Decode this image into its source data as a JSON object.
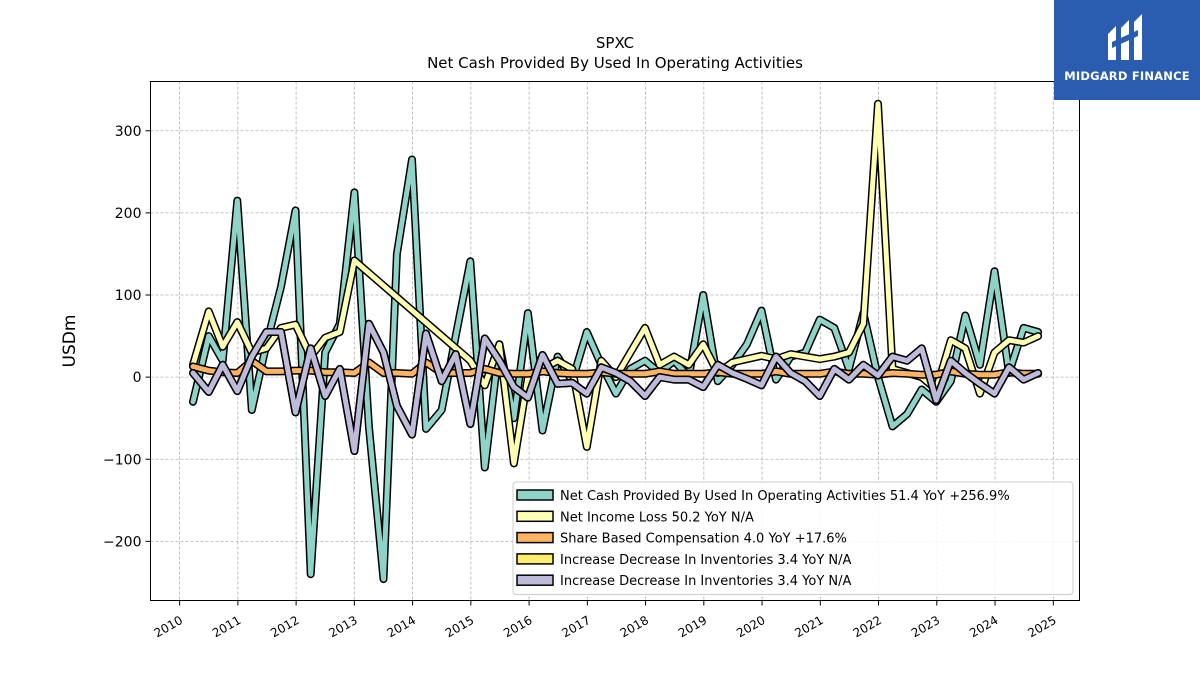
{
  "chart_data": {
    "type": "line",
    "title": "SPXC",
    "subtitle": "Net Cash Provided By Used In Operating Activities",
    "xlabel": "",
    "ylabel": "USDm",
    "xlim": [
      2009.5,
      2025.45
    ],
    "ylim": [
      -272,
      360
    ],
    "x_ticks": [
      "2010",
      "2011",
      "2012",
      "2013",
      "2014",
      "2015",
      "2016",
      "2017",
      "2018",
      "2019",
      "2020",
      "2021",
      "2022",
      "2023",
      "2024",
      "2025"
    ],
    "y_ticks": [
      {
        "value": 300,
        "label": "300"
      },
      {
        "value": 200,
        "label": "200"
      },
      {
        "value": 100,
        "label": "100"
      },
      {
        "value": 0,
        "label": "0"
      },
      {
        "value": -100,
        "label": "−100"
      },
      {
        "value": -200,
        "label": "−200"
      }
    ],
    "grid": true,
    "legend_position": "lower-right",
    "series": [
      {
        "name": "Net Cash Provided By Used In Operating Activities",
        "legend": "Net Cash Provided By Used In Operating Activities  51.4 YoY +256.9%",
        "color": "#8dd3c7",
        "points": [
          [
            2010.23,
            -30
          ],
          [
            2010.5,
            50
          ],
          [
            2010.74,
            20
          ],
          [
            2010.99,
            215
          ],
          [
            2011.24,
            -40
          ],
          [
            2011.49,
            40
          ],
          [
            2011.74,
            110
          ],
          [
            2011.99,
            203
          ],
          [
            2012.25,
            -240
          ],
          [
            2012.5,
            30
          ],
          [
            2012.75,
            65
          ],
          [
            2013.0,
            225
          ],
          [
            2013.25,
            -60
          ],
          [
            2013.5,
            -246
          ],
          [
            2013.73,
            150
          ],
          [
            2013.99,
            265
          ],
          [
            2014.23,
            -63
          ],
          [
            2014.5,
            -40
          ],
          [
            2014.74,
            50
          ],
          [
            2014.99,
            141
          ],
          [
            2015.24,
            -110
          ],
          [
            2015.49,
            40
          ],
          [
            2015.74,
            -50
          ],
          [
            2015.98,
            78
          ],
          [
            2016.23,
            -65
          ],
          [
            2016.49,
            25
          ],
          [
            2016.74,
            -5
          ],
          [
            2016.99,
            55
          ],
          [
            2017.24,
            15
          ],
          [
            2017.49,
            -20
          ],
          [
            2017.74,
            10
          ],
          [
            2017.99,
            20
          ],
          [
            2018.24,
            5
          ],
          [
            2018.49,
            20
          ],
          [
            2018.74,
            0
          ],
          [
            2018.99,
            100
          ],
          [
            2019.24,
            -5
          ],
          [
            2019.49,
            15
          ],
          [
            2019.74,
            40
          ],
          [
            2019.99,
            81
          ],
          [
            2020.24,
            -3
          ],
          [
            2020.49,
            25
          ],
          [
            2020.74,
            30
          ],
          [
            2020.99,
            70
          ],
          [
            2021.24,
            60
          ],
          [
            2021.49,
            10
          ],
          [
            2021.74,
            78
          ],
          [
            2021.99,
            0
          ],
          [
            2022.24,
            -60
          ],
          [
            2022.49,
            -45
          ],
          [
            2022.74,
            -15
          ],
          [
            2022.99,
            -30
          ],
          [
            2023.24,
            -5
          ],
          [
            2023.49,
            75
          ],
          [
            2023.74,
            15
          ],
          [
            2023.99,
            129
          ],
          [
            2024.24,
            5
          ],
          [
            2024.49,
            60
          ],
          [
            2024.74,
            55
          ]
        ]
      },
      {
        "name": "Net Income Loss",
        "legend": "Net Income Loss  50.2 YoY N/A",
        "color": "#ffffb3",
        "points": [
          [
            2010.23,
            15
          ],
          [
            2010.5,
            80
          ],
          [
            2010.74,
            37
          ],
          [
            2010.99,
            67
          ],
          [
            2011.24,
            30
          ],
          [
            2011.49,
            35
          ],
          [
            2011.74,
            60
          ],
          [
            2011.99,
            64
          ],
          [
            2012.25,
            25
          ],
          [
            2012.5,
            48
          ],
          [
            2012.75,
            55
          ],
          [
            2013.0,
            142
          ],
          [
            2014.99,
            20
          ],
          [
            2015.24,
            -10
          ],
          [
            2015.49,
            40
          ],
          [
            2015.74,
            -105
          ],
          [
            2015.98,
            0
          ],
          [
            2016.23,
            10
          ],
          [
            2016.49,
            20
          ],
          [
            2016.74,
            10
          ],
          [
            2016.99,
            -85
          ],
          [
            2017.24,
            20
          ],
          [
            2017.49,
            0
          ],
          [
            2017.74,
            30
          ],
          [
            2017.99,
            60
          ],
          [
            2018.24,
            15
          ],
          [
            2018.49,
            25
          ],
          [
            2018.74,
            15
          ],
          [
            2018.99,
            40
          ],
          [
            2019.24,
            5
          ],
          [
            2019.49,
            18
          ],
          [
            2019.74,
            22
          ],
          [
            2019.99,
            26
          ],
          [
            2020.24,
            22
          ],
          [
            2020.49,
            28
          ],
          [
            2020.74,
            25
          ],
          [
            2020.99,
            22
          ],
          [
            2021.24,
            25
          ],
          [
            2021.49,
            30
          ],
          [
            2021.74,
            65
          ],
          [
            2021.99,
            333
          ],
          [
            2022.24,
            10
          ],
          [
            2022.49,
            5
          ],
          [
            2022.74,
            0
          ],
          [
            2022.99,
            -15
          ],
          [
            2023.24,
            45
          ],
          [
            2023.49,
            35
          ],
          [
            2023.74,
            -20
          ],
          [
            2023.99,
            30
          ],
          [
            2024.24,
            45
          ],
          [
            2024.49,
            42
          ],
          [
            2024.74,
            50
          ]
        ]
      },
      {
        "name": "Share Based Compensation",
        "legend": "Share Based Compensation  4.0 YoY +17.6%",
        "color": "#fdb462",
        "points": [
          [
            2010.23,
            13
          ],
          [
            2010.5,
            8
          ],
          [
            2010.74,
            6
          ],
          [
            2010.99,
            5
          ],
          [
            2011.24,
            20
          ],
          [
            2011.49,
            7
          ],
          [
            2011.74,
            7
          ],
          [
            2011.99,
            8
          ],
          [
            2012.25,
            8
          ],
          [
            2012.5,
            6
          ],
          [
            2012.75,
            6
          ],
          [
            2013.0,
            5
          ],
          [
            2013.25,
            18
          ],
          [
            2013.5,
            5
          ],
          [
            2013.73,
            5
          ],
          [
            2013.99,
            4
          ],
          [
            2014.23,
            18
          ],
          [
            2014.5,
            5
          ],
          [
            2014.74,
            5
          ],
          [
            2014.99,
            5
          ],
          [
            2015.24,
            10
          ],
          [
            2015.49,
            5
          ],
          [
            2015.74,
            4
          ],
          [
            2015.98,
            4
          ],
          [
            2016.23,
            7
          ],
          [
            2016.49,
            5
          ],
          [
            2016.74,
            4
          ],
          [
            2016.99,
            4
          ],
          [
            2017.24,
            6
          ],
          [
            2017.49,
            4
          ],
          [
            2017.74,
            4
          ],
          [
            2017.99,
            4
          ],
          [
            2018.24,
            7
          ],
          [
            2018.49,
            4
          ],
          [
            2018.74,
            4
          ],
          [
            2018.99,
            4
          ],
          [
            2019.24,
            6
          ],
          [
            2019.49,
            4
          ],
          [
            2019.74,
            4
          ],
          [
            2019.99,
            4
          ],
          [
            2020.24,
            7
          ],
          [
            2020.49,
            4
          ],
          [
            2020.74,
            4
          ],
          [
            2020.99,
            4
          ],
          [
            2021.24,
            7
          ],
          [
            2021.49,
            4
          ],
          [
            2021.74,
            4
          ],
          [
            2021.99,
            3
          ],
          [
            2022.24,
            5
          ],
          [
            2022.49,
            4
          ],
          [
            2022.74,
            3
          ],
          [
            2022.99,
            3
          ],
          [
            2023.24,
            7
          ],
          [
            2023.49,
            4
          ],
          [
            2023.74,
            3
          ],
          [
            2023.99,
            3
          ],
          [
            2024.24,
            6
          ],
          [
            2024.49,
            4
          ],
          [
            2024.74,
            4
          ]
        ]
      },
      {
        "name": "Increase Decrease In Inventories",
        "legend": "Increase Decrease In Inventories  3.4 YoY N/A",
        "color": "#ffed6f",
        "points": [
          [
            2010.23,
            5
          ],
          [
            2010.5,
            -18
          ],
          [
            2010.74,
            15
          ],
          [
            2010.99,
            -17
          ],
          [
            2011.24,
            25
          ],
          [
            2011.49,
            55
          ],
          [
            2011.74,
            55
          ],
          [
            2011.99,
            -43
          ],
          [
            2012.25,
            35
          ],
          [
            2012.5,
            -23
          ],
          [
            2012.75,
            10
          ],
          [
            2013.0,
            -90
          ],
          [
            2013.25,
            65
          ],
          [
            2013.5,
            30
          ],
          [
            2013.73,
            -35
          ],
          [
            2013.99,
            -70
          ],
          [
            2014.23,
            53
          ],
          [
            2014.5,
            -5
          ],
          [
            2014.74,
            28
          ],
          [
            2014.99,
            -57
          ],
          [
            2015.24,
            47
          ],
          [
            2015.49,
            20
          ],
          [
            2015.74,
            -12
          ],
          [
            2015.98,
            -25
          ],
          [
            2016.23,
            27
          ],
          [
            2016.49,
            -8
          ],
          [
            2016.74,
            -7
          ],
          [
            2016.99,
            -20
          ],
          [
            2017.24,
            12
          ],
          [
            2017.49,
            5
          ],
          [
            2017.74,
            -5
          ],
          [
            2017.99,
            -23
          ],
          [
            2018.24,
            0
          ],
          [
            2018.49,
            -3
          ],
          [
            2018.74,
            -3
          ],
          [
            2018.99,
            -12
          ],
          [
            2019.24,
            15
          ],
          [
            2019.49,
            5
          ],
          [
            2019.74,
            -2
          ],
          [
            2019.99,
            -10
          ],
          [
            2020.24,
            25
          ],
          [
            2020.49,
            5
          ],
          [
            2020.74,
            -5
          ],
          [
            2020.99,
            -23
          ],
          [
            2021.24,
            10
          ],
          [
            2021.49,
            -3
          ],
          [
            2021.74,
            15
          ],
          [
            2021.99,
            2
          ],
          [
            2022.24,
            25
          ],
          [
            2022.49,
            20
          ],
          [
            2022.74,
            35
          ],
          [
            2022.99,
            -28
          ],
          [
            2023.24,
            20
          ],
          [
            2023.49,
            5
          ],
          [
            2023.74,
            -8
          ],
          [
            2023.99,
            -20
          ],
          [
            2024.24,
            12
          ],
          [
            2024.49,
            -3
          ],
          [
            2024.74,
            5
          ]
        ]
      },
      {
        "name": "Increase Decrease In Inventories",
        "legend": "Increase Decrease In Inventories  3.4 YoY N/A",
        "color": "#bebada",
        "points": [
          [
            2010.23,
            5
          ],
          [
            2010.5,
            -18
          ],
          [
            2010.74,
            15
          ],
          [
            2010.99,
            -17
          ],
          [
            2011.24,
            25
          ],
          [
            2011.49,
            55
          ],
          [
            2011.74,
            55
          ],
          [
            2011.99,
            -43
          ],
          [
            2012.25,
            35
          ],
          [
            2012.5,
            -23
          ],
          [
            2012.75,
            10
          ],
          [
            2013.0,
            -90
          ],
          [
            2013.25,
            65
          ],
          [
            2013.5,
            30
          ],
          [
            2013.73,
            -35
          ],
          [
            2013.99,
            -70
          ],
          [
            2014.23,
            53
          ],
          [
            2014.5,
            -5
          ],
          [
            2014.74,
            28
          ],
          [
            2014.99,
            -57
          ],
          [
            2015.24,
            47
          ],
          [
            2015.49,
            20
          ],
          [
            2015.74,
            -12
          ],
          [
            2015.98,
            -25
          ],
          [
            2016.23,
            27
          ],
          [
            2016.49,
            -8
          ],
          [
            2016.74,
            -7
          ],
          [
            2016.99,
            -20
          ],
          [
            2017.24,
            12
          ],
          [
            2017.49,
            5
          ],
          [
            2017.74,
            -5
          ],
          [
            2017.99,
            -23
          ],
          [
            2018.24,
            0
          ],
          [
            2018.49,
            -3
          ],
          [
            2018.74,
            -3
          ],
          [
            2018.99,
            -12
          ],
          [
            2019.24,
            15
          ],
          [
            2019.49,
            5
          ],
          [
            2019.74,
            -2
          ],
          [
            2019.99,
            -10
          ],
          [
            2020.24,
            25
          ],
          [
            2020.49,
            5
          ],
          [
            2020.74,
            -5
          ],
          [
            2020.99,
            -23
          ],
          [
            2021.24,
            10
          ],
          [
            2021.49,
            -3
          ],
          [
            2021.74,
            15
          ],
          [
            2021.99,
            2
          ],
          [
            2022.24,
            25
          ],
          [
            2022.49,
            20
          ],
          [
            2022.74,
            35
          ],
          [
            2022.99,
            -28
          ],
          [
            2023.24,
            20
          ],
          [
            2023.49,
            5
          ],
          [
            2023.74,
            -8
          ],
          [
            2023.99,
            -20
          ],
          [
            2024.24,
            12
          ],
          [
            2024.49,
            -3
          ],
          [
            2024.74,
            5
          ]
        ]
      }
    ]
  },
  "logo": {
    "text": "MIDGARD FINANCE",
    "background": "#2a5cb0"
  }
}
